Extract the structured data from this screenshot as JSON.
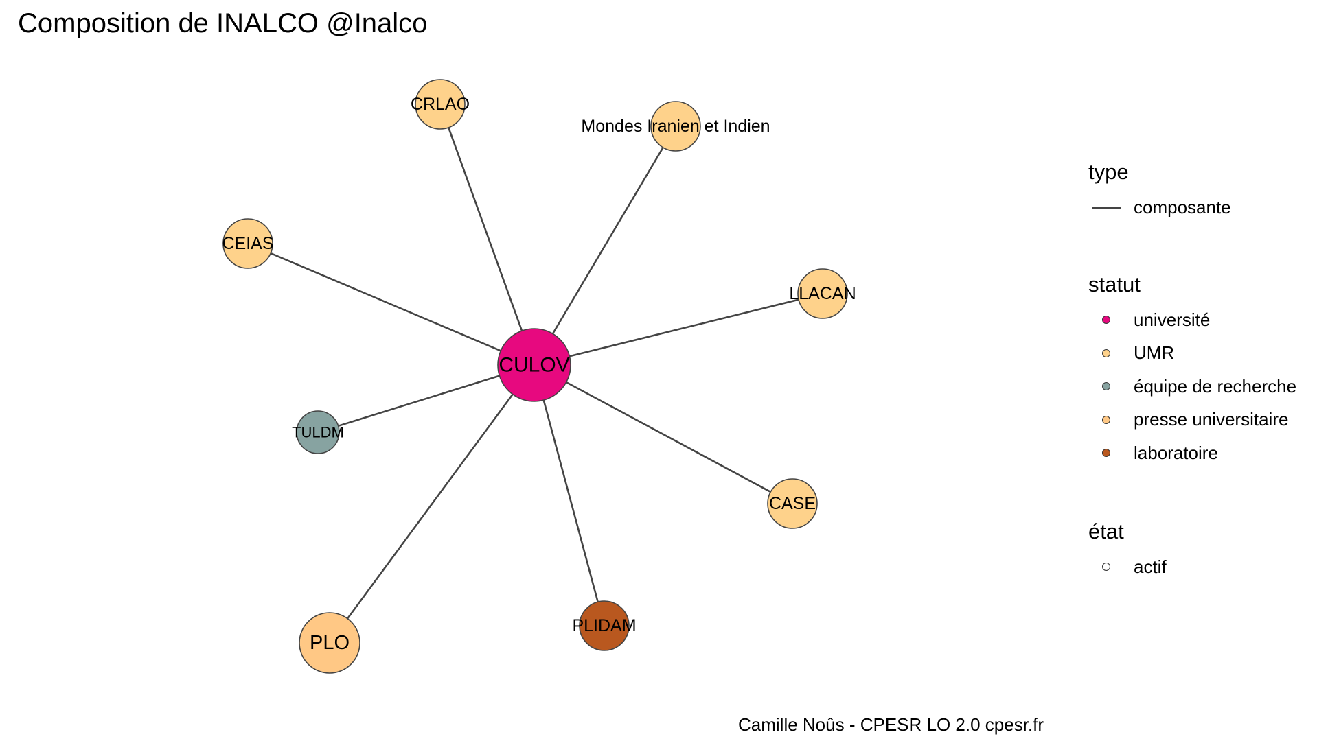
{
  "title": "Composition de INALCO @Inalco",
  "caption": "Camille Noûs - CPESR LO 2.0 cpesr.fr",
  "legend": {
    "type": {
      "title": "type",
      "items": [
        {
          "label": "composante",
          "color": "#444444"
        }
      ]
    },
    "statut": {
      "title": "statut",
      "items": [
        {
          "label": "université",
          "color": "#E7097F"
        },
        {
          "label": "UMR",
          "color": "#FED28B"
        },
        {
          "label": "équipe de recherche",
          "color": "#87A3A1"
        },
        {
          "label": "presse universitaire",
          "color": "#FFC885"
        },
        {
          "label": "laboratoire",
          "color": "#B9581F"
        }
      ]
    },
    "etat": {
      "title": "état",
      "items": [
        {
          "label": "actif",
          "color": "#FFFFFF"
        }
      ]
    }
  },
  "graph": {
    "edge_color": "#444444",
    "edge_type": "composante",
    "center": {
      "id": "CULOV",
      "label": "CULOV",
      "statut": "université",
      "color": "#E7097F"
    },
    "nodes": [
      {
        "id": "CRLAO",
        "label": "CRLAO",
        "statut": "UMR",
        "color": "#FED28B"
      },
      {
        "id": "MII",
        "label": "Mondes Iranien et Indien",
        "statut": "UMR",
        "color": "#FED28B"
      },
      {
        "id": "CEIAS",
        "label": "CEIAS",
        "statut": "UMR",
        "color": "#FED28B"
      },
      {
        "id": "LLACAN",
        "label": "LLACAN",
        "statut": "UMR",
        "color": "#FED28B"
      },
      {
        "id": "TULDM",
        "label": "TULDM",
        "statut": "équipe de recherche",
        "color": "#87A3A1"
      },
      {
        "id": "CASE",
        "label": "CASE",
        "statut": "UMR",
        "color": "#FED28B"
      },
      {
        "id": "PLO",
        "label": "PLO",
        "statut": "presse universitaire",
        "color": "#FFC885"
      },
      {
        "id": "PLIDAM",
        "label": "PLIDAM",
        "statut": "laboratoire",
        "color": "#B9581F"
      }
    ]
  }
}
